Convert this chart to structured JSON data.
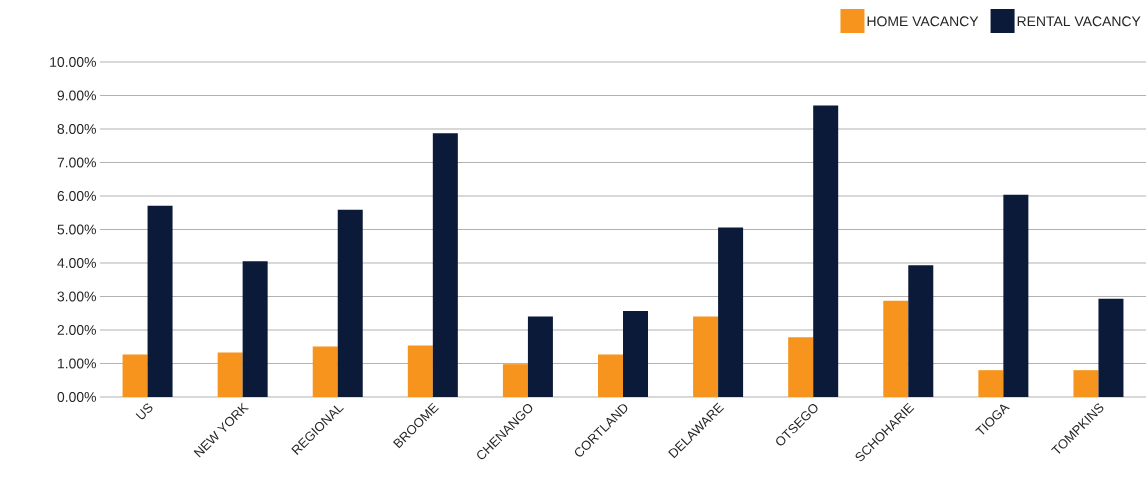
{
  "chart_data": {
    "type": "bar",
    "categories": [
      "US",
      "NEW YORK",
      "REGIONAL",
      "BROOME",
      "CHENANGO",
      "CORTLAND",
      "DELAWARE",
      "OTSEGO",
      "SCHOHARIE",
      "TIOGA",
      "TOMPKINS"
    ],
    "series": [
      {
        "name": "HOME VACANCY",
        "color": "#f7941d",
        "values": [
          1.27,
          1.33,
          1.51,
          1.54,
          0.98,
          1.27,
          2.4,
          1.78,
          2.87,
          0.8,
          0.8
        ]
      },
      {
        "name": "RENTAL VACANCY",
        "color": "#0a1a38",
        "values": [
          5.71,
          4.05,
          5.59,
          7.87,
          2.4,
          2.57,
          5.06,
          8.7,
          3.93,
          6.04,
          2.93
        ]
      }
    ],
    "ylim": [
      0,
      10
    ],
    "yticks": [
      {
        "value": 0,
        "label": "0.00%"
      },
      {
        "value": 1,
        "label": "1.00%"
      },
      {
        "value": 2,
        "label": "2.00%"
      },
      {
        "value": 3,
        "label": "3.00%"
      },
      {
        "value": 4,
        "label": "4.00%"
      },
      {
        "value": 5,
        "label": "5.00%"
      },
      {
        "value": 6,
        "label": "6.00%"
      },
      {
        "value": 7,
        "label": "7.00%"
      },
      {
        "value": 8,
        "label": "8.00%"
      },
      {
        "value": 9,
        "label": "9.00%"
      },
      {
        "value": 10,
        "label": "10.00%"
      }
    ],
    "grid": "y",
    "legend": "top right"
  }
}
